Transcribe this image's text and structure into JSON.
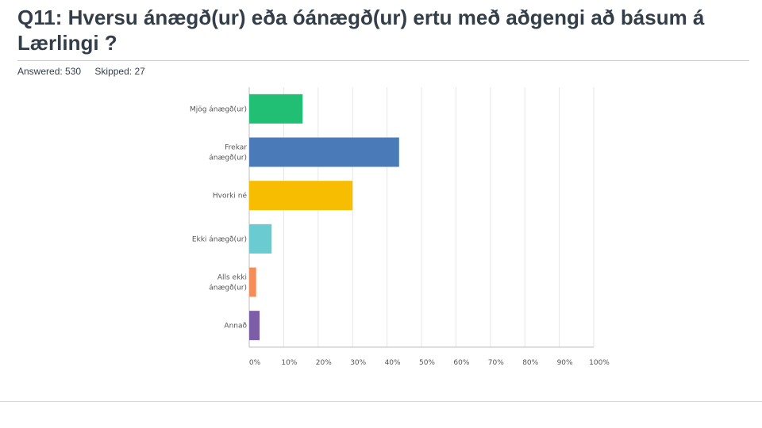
{
  "question": {
    "title": "Q11: Hversu ánægð(ur) eða óánægð(ur) ertu með aðgengi að básum á Lærlingi ?",
    "answered_label": "Answered: 530",
    "skipped_label": "Skipped: 27"
  },
  "chart_data": {
    "type": "bar",
    "orientation": "horizontal",
    "categories": [
      [
        "Mjög ánægð(ur)"
      ],
      [
        "Frekar",
        "ánægð(ur)"
      ],
      [
        "Hvorki né"
      ],
      [
        "Ekki ánægð(ur)"
      ],
      [
        "Alls ekki",
        "ánægð(ur)"
      ],
      [
        "Annað"
      ]
    ],
    "values": [
      15.5,
      43.5,
      30,
      6.5,
      2,
      3
    ],
    "unit": "%",
    "xlim": [
      0,
      100
    ],
    "x_ticks": [
      "0%",
      "10%",
      "20%",
      "30%",
      "40%",
      "50%",
      "60%",
      "70%",
      "80%",
      "90%",
      "100%"
    ],
    "bar_colors": [
      "#21bf73",
      "#4a7ab8",
      "#f7bd00",
      "#6accd0",
      "#f48d57",
      "#7b5ea7"
    ],
    "grid": true,
    "legend": "none"
  }
}
